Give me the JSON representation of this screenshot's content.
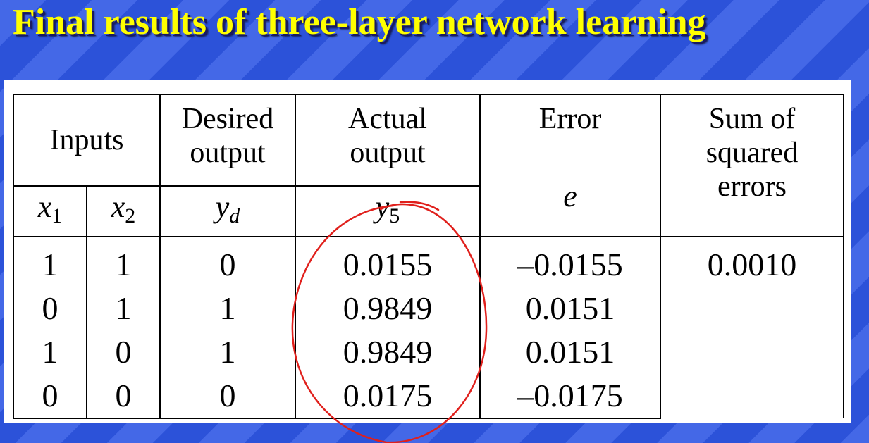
{
  "slide": {
    "title": "Final results of three-layer network learning"
  },
  "table": {
    "headers": {
      "inputs": "Inputs",
      "desired_output_line1": "Desired",
      "desired_output_line2": "output",
      "actual_output_line1": "Actual",
      "actual_output_line2": "output",
      "error": "Error",
      "sse_line1": "Sum of",
      "sse_line2": "squared",
      "sse_line3": "errors"
    },
    "symbols": {
      "x1_base": "x",
      "x1_sub": "1",
      "x2_base": "x",
      "x2_sub": "2",
      "yd_base": "y",
      "yd_sub": "d",
      "y5_base": "y",
      "y5_sub": "5",
      "e": "e"
    },
    "rows": [
      {
        "x1": "1",
        "x2": "1",
        "yd": "0",
        "y5": "0.0155",
        "e": "–0.0155"
      },
      {
        "x1": "0",
        "x2": "1",
        "yd": "1",
        "y5": "0.9849",
        "e": "0.0151"
      },
      {
        "x1": "1",
        "x2": "0",
        "yd": "1",
        "y5": "0.9849",
        "e": "0.0151"
      },
      {
        "x1": "0",
        "x2": "0",
        "yd": "0",
        "y5": "0.0175",
        "e": "–0.0175"
      }
    ],
    "sum_of_squared_errors": "0.0010"
  },
  "annotation": {
    "color": "#e0201c",
    "shape": "hand-drawn-ellipse-around-actual-output-column"
  }
}
